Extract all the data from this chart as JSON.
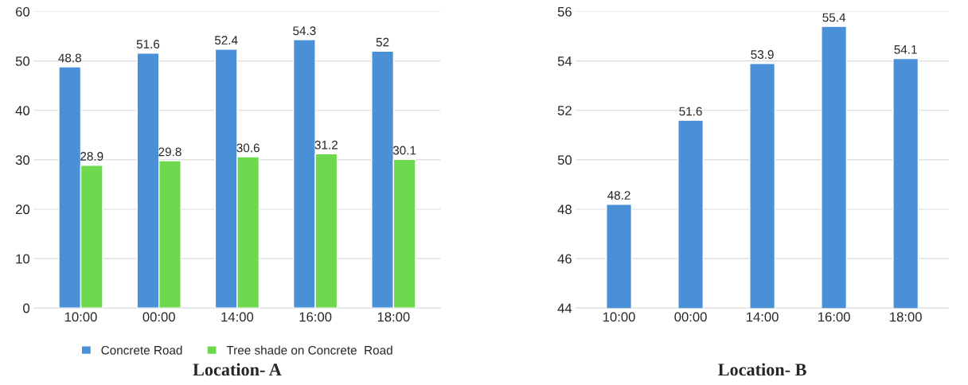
{
  "chart_data": [
    {
      "type": "bar",
      "title": "Location- A",
      "categories": [
        "10:00",
        "00:00",
        "14:00",
        "16:00",
        "18:00"
      ],
      "series": [
        {
          "name": "Concrete Road",
          "color": "#4a90d6",
          "values": [
            48.8,
            51.6,
            52.4,
            54.3,
            52
          ]
        },
        {
          "name": "Tree shade on Concrete  Road",
          "color": "#6ed94f",
          "values": [
            28.9,
            29.8,
            30.6,
            31.2,
            30.1
          ]
        }
      ],
      "ylim": [
        0,
        60
      ],
      "yticks": [
        0,
        10,
        20,
        30,
        40,
        50,
        60
      ],
      "grid": "y",
      "legend": "bottom",
      "data_labels": true
    },
    {
      "type": "bar",
      "title": "Location- B",
      "categories": [
        "10:00",
        "00:00",
        "14:00",
        "16:00",
        "18:00"
      ],
      "series": [
        {
          "color": "#4a90d6",
          "values": [
            48.2,
            51.6,
            53.9,
            55.4,
            54.1
          ]
        }
      ],
      "ylim": [
        44,
        56
      ],
      "yticks": [
        44,
        46,
        48,
        50,
        52,
        54,
        56
      ],
      "grid": "y",
      "legend": false,
      "data_labels": true
    }
  ]
}
